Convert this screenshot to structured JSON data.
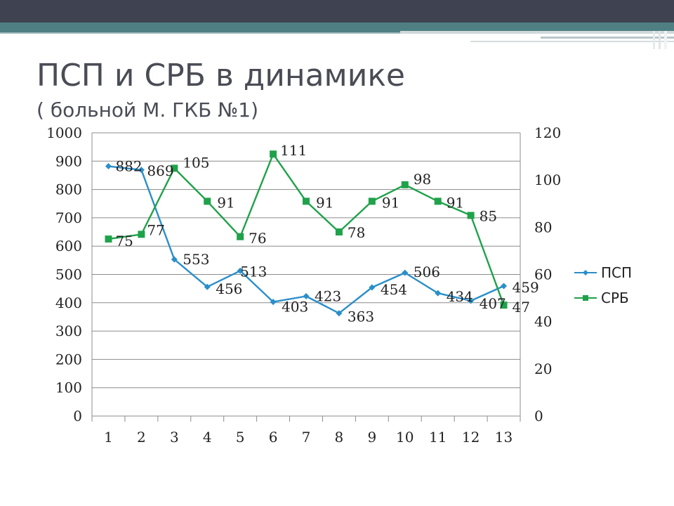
{
  "slide": {
    "title": "ПСП и СРБ в динамике",
    "subtitle": "( больной М. ГКБ №1)"
  },
  "colors": {
    "psp": "#2a8fc9",
    "srb": "#1fa24a",
    "grid": "#8c8c8c",
    "header_dark": "#3f4250",
    "header_teal": "#4f7f82"
  },
  "chart_data": {
    "type": "line",
    "title": "",
    "xlabel": "",
    "ylabel": "",
    "categories": [
      "1",
      "2",
      "3",
      "4",
      "5",
      "6",
      "7",
      "8",
      "9",
      "10",
      "11",
      "12",
      "13"
    ],
    "y_ticks": [
      "0",
      "100",
      "200",
      "300",
      "400",
      "500",
      "600",
      "700",
      "800",
      "900",
      "1000"
    ],
    "y2_ticks": [
      "0",
      "20",
      "40",
      "60",
      "80",
      "100",
      "120"
    ],
    "ylim": [
      0,
      1000
    ],
    "y2lim": [
      0,
      120
    ],
    "grid": true,
    "legend_position": "right",
    "series": [
      {
        "name": "ПСП",
        "axis": "left",
        "marker": "diamond",
        "values": [
          882,
          869,
          553,
          456,
          513,
          403,
          423,
          363,
          454,
          506,
          434,
          407,
          459
        ],
        "labels": [
          "882",
          "869",
          "553",
          "456",
          "513",
          "403",
          "423",
          "363",
          "454",
          "506",
          "434",
          "407",
          "459"
        ]
      },
      {
        "name": "СРБ",
        "axis": "right",
        "marker": "square",
        "values": [
          75,
          77,
          105,
          91,
          76,
          111,
          91,
          78,
          91,
          98,
          91,
          85,
          47
        ],
        "labels": [
          "75",
          "77",
          "105",
          "91",
          "76",
          "111",
          "91",
          "78",
          "91",
          "98",
          "91",
          "85",
          "47"
        ]
      }
    ]
  }
}
